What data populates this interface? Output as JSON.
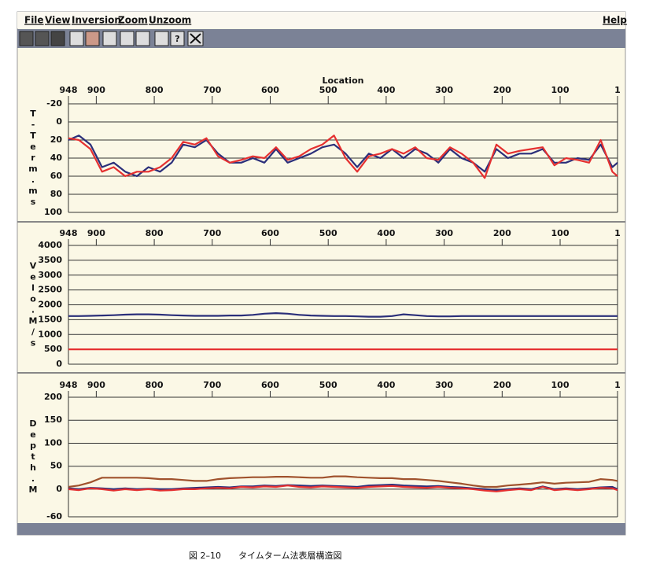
{
  "menu": {
    "items": [
      "File",
      "View",
      "Inversion",
      "Zoom",
      "Unzoom"
    ],
    "help": "Help"
  },
  "toolbar": {
    "help_button": "?"
  },
  "chart_data": [
    {
      "type": "line",
      "xlabel": "Location",
      "ylabel": "T-Term.ms",
      "x": [
        948,
        930,
        910,
        890,
        870,
        850,
        830,
        810,
        790,
        770,
        750,
        730,
        710,
        690,
        670,
        650,
        630,
        610,
        590,
        570,
        550,
        530,
        510,
        490,
        470,
        450,
        430,
        410,
        390,
        370,
        350,
        330,
        310,
        290,
        270,
        250,
        230,
        210,
        190,
        170,
        150,
        130,
        110,
        90,
        70,
        50,
        30,
        10,
        1
      ],
      "xlim": [
        948,
        1
      ],
      "xticks": [
        948,
        900,
        800,
        700,
        600,
        500,
        400,
        300,
        200,
        100,
        1
      ],
      "ylim": [
        -20,
        100
      ],
      "yticks": [
        -20,
        0,
        20,
        40,
        60,
        80,
        100
      ],
      "inverted": true,
      "grid": true,
      "series": [
        {
          "color": "#2b2f7a",
          "values": [
            20,
            15,
            25,
            50,
            45,
            55,
            60,
            50,
            55,
            45,
            25,
            28,
            20,
            35,
            45,
            45,
            40,
            45,
            30,
            45,
            40,
            35,
            28,
            25,
            35,
            50,
            35,
            40,
            30,
            40,
            30,
            35,
            45,
            30,
            40,
            45,
            55,
            30,
            40,
            35,
            35,
            30,
            45,
            45,
            40,
            42,
            25,
            50,
            45
          ]
        },
        {
          "color": "#e53030",
          "values": [
            18,
            20,
            30,
            55,
            50,
            60,
            55,
            55,
            50,
            40,
            22,
            25,
            18,
            38,
            45,
            42,
            38,
            40,
            28,
            42,
            38,
            30,
            25,
            15,
            40,
            55,
            38,
            35,
            30,
            35,
            28,
            40,
            42,
            28,
            35,
            45,
            62,
            25,
            35,
            32,
            30,
            28,
            48,
            40,
            42,
            45,
            20,
            55,
            60
          ]
        }
      ]
    },
    {
      "type": "line",
      "ylabel": "Velo.M/s",
      "x": [
        948,
        930,
        910,
        890,
        870,
        850,
        830,
        810,
        790,
        770,
        750,
        730,
        710,
        690,
        670,
        650,
        630,
        610,
        590,
        570,
        550,
        530,
        510,
        490,
        470,
        450,
        430,
        410,
        390,
        370,
        350,
        330,
        310,
        290,
        270,
        250,
        230,
        210,
        190,
        170,
        150,
        130,
        110,
        90,
        70,
        50,
        30,
        10,
        1
      ],
      "xlim": [
        948,
        1
      ],
      "xticks": [
        948,
        900,
        800,
        700,
        600,
        500,
        400,
        300,
        200,
        100,
        1
      ],
      "ylim": [
        0,
        4000
      ],
      "yticks": [
        0,
        500,
        1000,
        1500,
        2000,
        2500,
        3000,
        3500,
        4000
      ],
      "inverted": false,
      "grid": true,
      "series": [
        {
          "color": "#2b2f7a",
          "values": [
            1620,
            1620,
            1630,
            1640,
            1650,
            1670,
            1680,
            1680,
            1670,
            1650,
            1640,
            1630,
            1630,
            1630,
            1640,
            1640,
            1660,
            1700,
            1720,
            1700,
            1660,
            1640,
            1630,
            1620,
            1620,
            1610,
            1600,
            1600,
            1620,
            1680,
            1650,
            1620,
            1610,
            1610,
            1620,
            1620,
            1620,
            1620,
            1620,
            1620,
            1620,
            1620,
            1620,
            1620,
            1620,
            1620,
            1620,
            1620,
            1620
          ]
        },
        {
          "color": "#e53030",
          "values": [
            500,
            500,
            500,
            500,
            500,
            500,
            500,
            500,
            500,
            500,
            500,
            500,
            500,
            500,
            500,
            500,
            500,
            500,
            500,
            500,
            500,
            500,
            500,
            500,
            500,
            500,
            500,
            500,
            500,
            500,
            500,
            500,
            500,
            500,
            500,
            500,
            500,
            500,
            500,
            500,
            500,
            500,
            500,
            500,
            500,
            500,
            500,
            500,
            500
          ]
        }
      ]
    },
    {
      "type": "line",
      "ylabel": "Depth.M",
      "x": [
        948,
        930,
        910,
        890,
        870,
        850,
        830,
        810,
        790,
        770,
        750,
        730,
        710,
        690,
        670,
        650,
        630,
        610,
        590,
        570,
        550,
        530,
        510,
        490,
        470,
        450,
        430,
        410,
        390,
        370,
        350,
        330,
        310,
        290,
        270,
        250,
        230,
        210,
        190,
        170,
        150,
        130,
        110,
        90,
        70,
        50,
        30,
        10,
        1
      ],
      "xlim": [
        948,
        1
      ],
      "xticks": [
        948,
        900,
        800,
        700,
        600,
        500,
        400,
        300,
        200,
        100,
        1
      ],
      "ylim": [
        -60,
        200
      ],
      "yticks": [
        -60,
        0,
        50,
        100,
        150,
        200
      ],
      "inverted": false,
      "grid": true,
      "series": [
        {
          "color": "#a0522d",
          "values": [
            5,
            8,
            15,
            25,
            25,
            25,
            25,
            24,
            22,
            22,
            20,
            18,
            18,
            22,
            24,
            25,
            26,
            26,
            27,
            27,
            26,
            25,
            25,
            28,
            28,
            26,
            25,
            24,
            24,
            22,
            22,
            20,
            18,
            15,
            12,
            8,
            5,
            5,
            8,
            10,
            12,
            15,
            12,
            14,
            15,
            16,
            22,
            20,
            18
          ]
        },
        {
          "color": "#2b2f7a",
          "values": [
            2,
            0,
            3,
            2,
            0,
            2,
            0,
            1,
            0,
            0,
            2,
            3,
            4,
            5,
            4,
            6,
            6,
            8,
            7,
            9,
            8,
            7,
            8,
            7,
            6,
            5,
            8,
            9,
            10,
            8,
            7,
            6,
            7,
            5,
            4,
            2,
            0,
            -2,
            0,
            2,
            0,
            6,
            0,
            2,
            0,
            2,
            4,
            5,
            0
          ]
        },
        {
          "color": "#e53030",
          "values": [
            0,
            -2,
            2,
            0,
            -3,
            0,
            -2,
            0,
            -3,
            -2,
            0,
            0,
            2,
            3,
            2,
            5,
            4,
            6,
            5,
            8,
            5,
            4,
            6,
            5,
            4,
            3,
            5,
            6,
            7,
            5,
            4,
            3,
            5,
            3,
            2,
            0,
            -3,
            -5,
            -2,
            0,
            -2,
            5,
            -2,
            0,
            -2,
            0,
            3,
            2,
            -2
          ]
        }
      ]
    }
  ],
  "caption": "図 2–10　　タイムターム法表層構造図"
}
